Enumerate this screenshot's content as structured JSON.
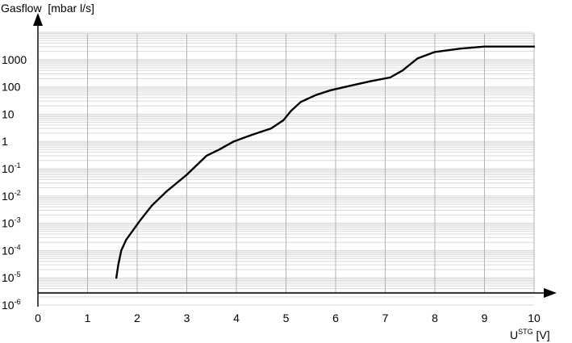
{
  "chart_data": {
    "type": "line",
    "title": "",
    "ylabel": "Gasflow  [mbar l/s]",
    "xlabel": "U",
    "xlabel_superscript": "STG",
    "xlabel_unit": " [V]",
    "xscale": "linear",
    "yscale": "log",
    "xlim": [
      0,
      10
    ],
    "ylim": [
      1e-06,
      10000
    ],
    "grid": true,
    "legend": "none",
    "x_ticks": [
      "0",
      "1",
      "2",
      "3",
      "4",
      "5",
      "6",
      "7",
      "8",
      "9",
      "10"
    ],
    "y_ticks": [
      {
        "value": 1e-06,
        "base": "10",
        "exp": "-6"
      },
      {
        "value": 1e-05,
        "base": "10",
        "exp": "-5"
      },
      {
        "value": 0.0001,
        "base": "10",
        "exp": "-4"
      },
      {
        "value": 0.001,
        "base": "10",
        "exp": "-3"
      },
      {
        "value": 0.01,
        "base": "10",
        "exp": "-2"
      },
      {
        "value": 0.1,
        "base": "10",
        "exp": "-1"
      },
      {
        "value": 1,
        "base": "1",
        "exp": ""
      },
      {
        "value": 10,
        "base": "10",
        "exp": ""
      },
      {
        "value": 100,
        "base": "100",
        "exp": ""
      },
      {
        "value": 1000,
        "base": "1000",
        "exp": ""
      }
    ],
    "series": [
      {
        "x": [
          1.58,
          1.62,
          1.68,
          1.78,
          1.9,
          2.05,
          2.3,
          2.6,
          3.0,
          3.4,
          3.65,
          3.95,
          4.3,
          4.7,
          4.95,
          5.1,
          5.3,
          5.6,
          5.9,
          6.3,
          6.7,
          7.1,
          7.35,
          7.65,
          8.0,
          8.5,
          9.0,
          10.0
        ],
        "y": [
          1e-05,
          3e-05,
          0.0001,
          0.00025,
          0.0005,
          0.0012,
          0.0045,
          0.015,
          0.06,
          0.3,
          0.5,
          1.0,
          1.7,
          3.0,
          6.0,
          13.0,
          28.0,
          50.0,
          75.0,
          110.0,
          160.0,
          220.0,
          400.0,
          1100.0,
          1900.0,
          2500.0,
          3000.0,
          3000.0
        ]
      }
    ]
  }
}
